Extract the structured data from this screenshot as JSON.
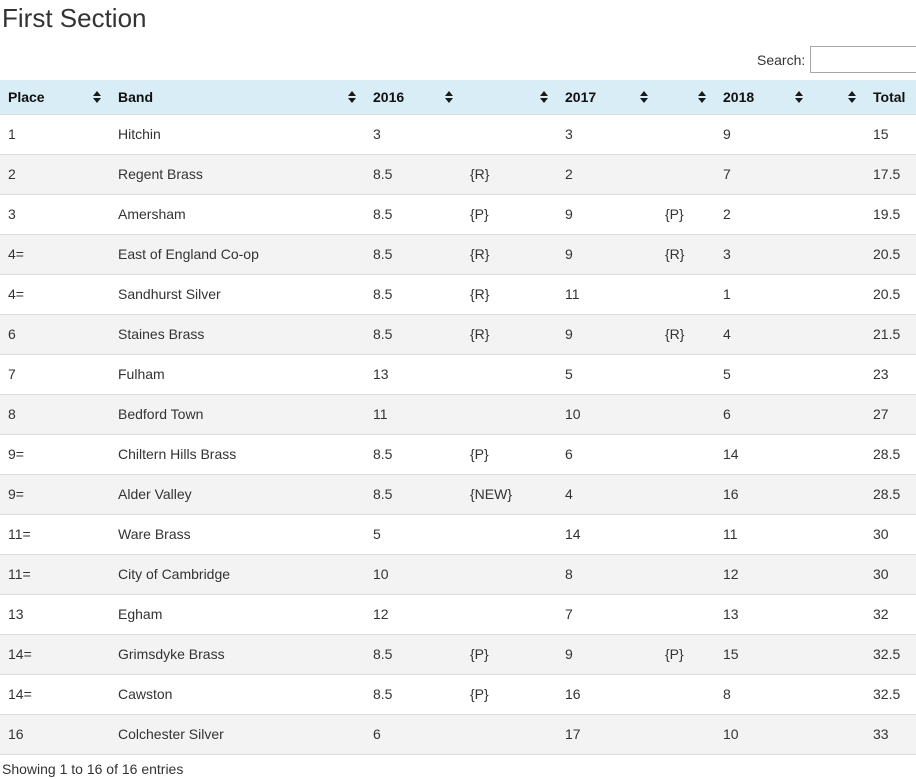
{
  "page": {
    "title": "First Section"
  },
  "search": {
    "label": "Search:",
    "value": ""
  },
  "table": {
    "columns": [
      {
        "label": "Place",
        "sortable": true
      },
      {
        "label": "Band",
        "sortable": true
      },
      {
        "label": "2016",
        "sortable": true
      },
      {
        "label": "",
        "sortable": true
      },
      {
        "label": "2017",
        "sortable": true
      },
      {
        "label": "",
        "sortable": true
      },
      {
        "label": "2018",
        "sortable": true
      },
      {
        "label": "",
        "sortable": true
      },
      {
        "label": "Total",
        "sortable": true
      }
    ],
    "rows": [
      [
        "1",
        "Hitchin",
        "3",
        "",
        "3",
        "",
        "9",
        "",
        "15"
      ],
      [
        "2",
        "Regent Brass",
        "8.5",
        "{R}",
        "2",
        "",
        "7",
        "",
        "17.5"
      ],
      [
        "3",
        "Amersham",
        "8.5",
        "{P}",
        "9",
        "{P}",
        "2",
        "",
        "19.5"
      ],
      [
        "4=",
        "East of England Co-op",
        "8.5",
        "{R}",
        "9",
        "{R}",
        "3",
        "",
        "20.5"
      ],
      [
        "4=",
        "Sandhurst Silver",
        "8.5",
        "{R}",
        "11",
        "",
        "1",
        "",
        "20.5"
      ],
      [
        "6",
        "Staines Brass",
        "8.5",
        "{R}",
        "9",
        "{R}",
        "4",
        "",
        "21.5"
      ],
      [
        "7",
        "Fulham",
        "13",
        "",
        "5",
        "",
        "5",
        "",
        "23"
      ],
      [
        "8",
        "Bedford Town",
        "11",
        "",
        "10",
        "",
        "6",
        "",
        "27"
      ],
      [
        "9=",
        "Chiltern Hills Brass",
        "8.5",
        "{P}",
        "6",
        "",
        "14",
        "",
        "28.5"
      ],
      [
        "9=",
        "Alder Valley",
        "8.5",
        "{NEW}",
        "4",
        "",
        "16",
        "",
        "28.5"
      ],
      [
        "11=",
        "Ware Brass",
        "5",
        "",
        "14",
        "",
        "11",
        "",
        "30"
      ],
      [
        "11=",
        "City of Cambridge",
        "10",
        "",
        "8",
        "",
        "12",
        "",
        "30"
      ],
      [
        "13",
        "Egham",
        "12",
        "",
        "7",
        "",
        "13",
        "",
        "32"
      ],
      [
        "14=",
        "Grimsdyke Brass",
        "8.5",
        "{P}",
        "9",
        "{P}",
        "15",
        "",
        "32.5"
      ],
      [
        "14=",
        "Cawston",
        "8.5",
        "{P}",
        "16",
        "",
        "8",
        "",
        "32.5"
      ],
      [
        "16",
        "Colchester Silver",
        "6",
        "",
        "17",
        "",
        "10",
        "",
        "33"
      ]
    ]
  },
  "footer": {
    "info": "Showing 1 to 16 of 16 entries"
  },
  "colors": {
    "header_bg": "#d9edf7",
    "row_stripe": "#f3f3f3",
    "border": "#dddddd",
    "text": "#333333",
    "sort_icon": "#1a1a1a"
  }
}
